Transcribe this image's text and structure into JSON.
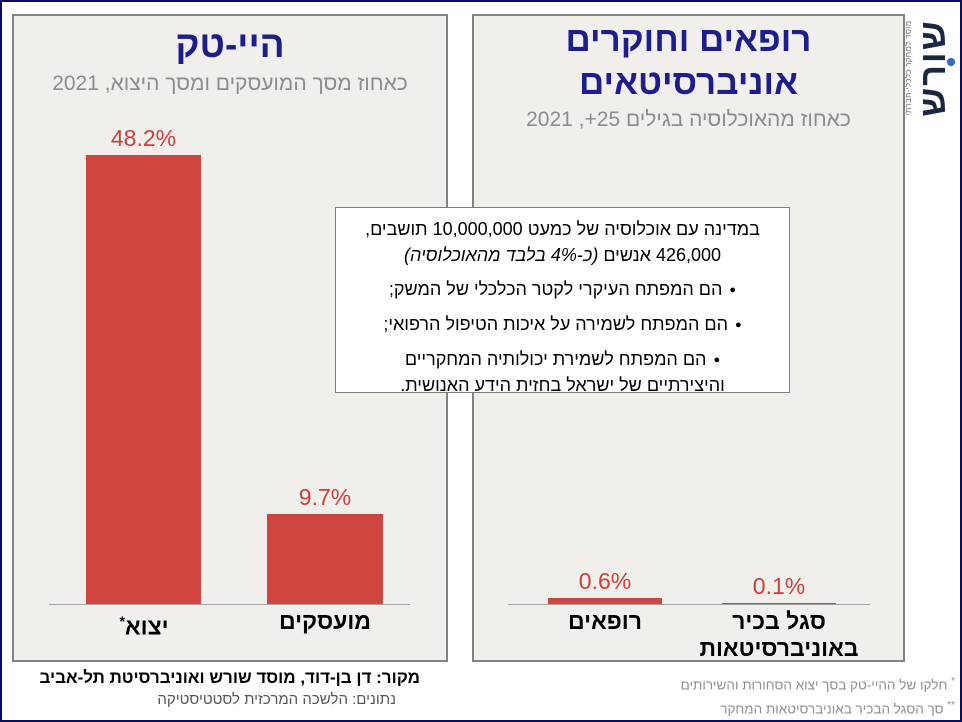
{
  "page": {
    "border_color": "#0c0c5c",
    "panel_bg": "#f0efec",
    "bar_color": "#d0453f",
    "value_label_color": "#cf3f39",
    "title_color": "#1d1d8c",
    "subtitle_color": "#8c8c8c"
  },
  "logo": {
    "wordmark": "שורש",
    "tagline": "מוסד למחקר כלכלי-חברתי",
    "wordmark_color": "#1b2742",
    "dot_color": "#2a6bd4"
  },
  "hightech_panel": {
    "title": "היי-טק",
    "subtitle": "כאחוז מסך המועסקים ומסך היצוא, 2021",
    "bars": [
      {
        "name": "יצוא",
        "marker": "*",
        "value_label": "48.2%"
      },
      {
        "name": "מועסקים",
        "marker": "",
        "value_label": "9.7%"
      }
    ]
  },
  "medical_panel": {
    "title_line1": "רופאים וחוקרים",
    "title_line2": "אוניברסיטאים",
    "subtitle": "כאחוז מהאוכלוסיה בגילים 25+, 2021",
    "bars": [
      {
        "name": "רופאים",
        "name_line2": "",
        "value_label": "0.6%"
      },
      {
        "name": "סגל בכיר",
        "name_line2": "באוניברסיטאות",
        "value_label": "0.1%"
      }
    ]
  },
  "callout": {
    "intro_line1": "במדינה עם אוכלוסיה של כמעט 10,000,000 תושבים,",
    "intro_line2_regular": "426,000 אנשים ",
    "intro_line2_italic": "(כ-4% בלבד מהאוכלוסיה)",
    "bullet_glyph": "●",
    "bullets": [
      "הם המפתח העיקרי לקטר הכלכלי של המשק;",
      "הם המפתח לשמירה על איכות הטיפול הרפואי;",
      "הם המפתח לשמירת יכולותיה המחקריים",
      "והיצירתיים של ישראל בחזית הידע האנושית."
    ]
  },
  "footer": {
    "source_line1": "מקור: דן בן-דוד, מוסד שורש ואוניברסיטת תל-אביב",
    "source_line2": "נתונים: הלשכה המרכזית לסטטיסטיקה",
    "footnote1_marker": "*",
    "footnote1": "חלקו של ההיי-טק בסך יצוא הסחורות והשירותים",
    "footnote2_marker": "**",
    "footnote2": "סך הסגל הבכיר באוניברסיטאות המחקר"
  },
  "chart_data": [
    {
      "type": "bar",
      "title": "היי-טק",
      "subtitle": "כאחוז מסך המועסקים ומסך היצוא, 2021",
      "categories": [
        "יצוא*",
        "מועסקים"
      ],
      "values": [
        48.2,
        9.7
      ],
      "value_labels": [
        "48.2%",
        "9.7%"
      ],
      "unit": "%",
      "year": "2021",
      "bar_color": "#d0453f",
      "ylim": [
        0,
        50
      ],
      "grid": false,
      "legend": false
    },
    {
      "type": "bar",
      "title": "רופאים וחוקרים אוניברסיטאים",
      "subtitle": "כאחוז מהאוכלוסיה בגילים 25+, 2021",
      "categories": [
        "רופאים",
        "סגל בכיר באוניברסיטאות"
      ],
      "values": [
        0.6,
        0.1
      ],
      "value_labels": [
        "0.6%",
        "0.1%"
      ],
      "unit": "%",
      "year": "2021",
      "bar_color": "#d0453f",
      "ylim": [
        0,
        50
      ],
      "grid": false,
      "legend": false
    }
  ]
}
